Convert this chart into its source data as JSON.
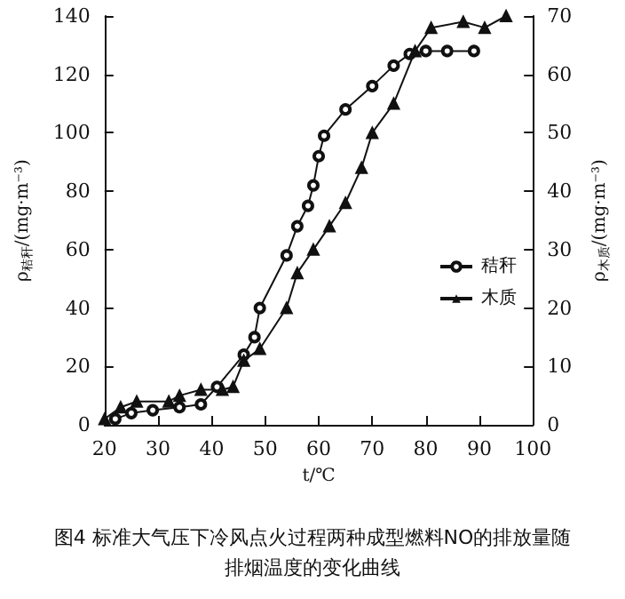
{
  "chart_data": {
    "type": "line",
    "title": "图4 标准大气压下冷风点火过程两种成型燃料NO的排放量随排烟温度的变化曲线",
    "xlabel": "t/℃",
    "ylabel": "ρ$_{秸秆}$/(mg·m⁻³)",
    "y2label": "ρ$_{木质}$/(mg·m⁻³)",
    "xlim": [
      20,
      100
    ],
    "xticks": [
      20,
      30,
      40,
      50,
      60,
      70,
      80,
      90,
      100
    ],
    "ylim": [
      0,
      140
    ],
    "yticks": [
      0,
      20,
      40,
      60,
      80,
      100,
      120,
      140
    ],
    "y2lim": [
      0,
      70
    ],
    "y2ticks": [
      0,
      10,
      20,
      30,
      40,
      50,
      60,
      70
    ],
    "grid": false,
    "legend": "right",
    "line_style": "solid",
    "series": [
      {
        "name": "秸秆",
        "color": "#111111",
        "marker": "circle",
        "x": [
          22,
          25,
          29,
          34,
          38,
          41,
          46,
          48,
          49,
          54,
          56,
          58,
          59,
          60,
          61,
          65,
          70,
          74,
          77,
          80,
          84,
          89
        ],
        "values": [
          2,
          4,
          5,
          6,
          7,
          13,
          24,
          30,
          40,
          58,
          68,
          75,
          82,
          92,
          99,
          108,
          116,
          123,
          127,
          128,
          128,
          128
        ]
      },
      {
        "name": "木质",
        "color": "#111111",
        "marker": "triangle",
        "axis": "y2",
        "x": [
          20,
          23,
          26,
          32,
          34,
          38,
          42,
          44,
          46,
          49,
          54,
          56,
          59,
          62,
          65,
          68,
          70,
          74,
          78,
          81,
          87,
          91,
          95
        ],
        "values": [
          1,
          3,
          4,
          4,
          5,
          6,
          6,
          6.5,
          11,
          13,
          20,
          26,
          30,
          34,
          38,
          44,
          50,
          55,
          64,
          68,
          69,
          68,
          70
        ]
      }
    ]
  }
}
